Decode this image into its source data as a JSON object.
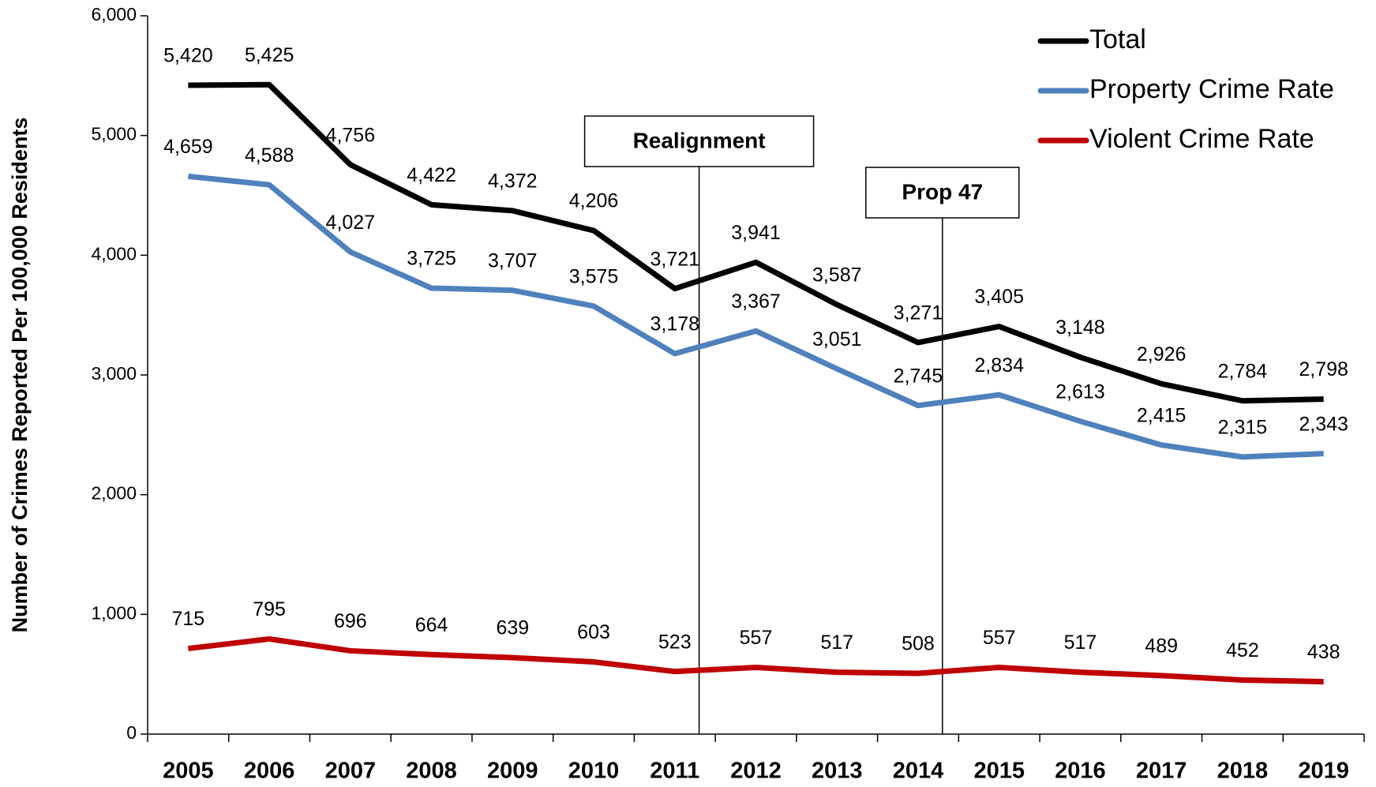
{
  "chart_data": {
    "type": "line",
    "y_label": "Number of Crimes Reported Per 100,000 Residents",
    "categories": [
      "2005",
      "2006",
      "2007",
      "2008",
      "2009",
      "2010",
      "2011",
      "2012",
      "2013",
      "2014",
      "2015",
      "2016",
      "2017",
      "2018",
      "2019"
    ],
    "series": [
      {
        "name": "Total",
        "color": "#000000",
        "values": [
          5420,
          5425,
          4756,
          4422,
          4372,
          4206,
          3721,
          3941,
          3587,
          3271,
          3405,
          3148,
          2926,
          2784,
          2798
        ],
        "value_labels": [
          "5,420",
          "5,425",
          "4,756",
          "4,422",
          "4,372",
          "4,206",
          "3,721",
          "3,941",
          "3,587",
          "3,271",
          "3,405",
          "3,148",
          "2,926",
          "2,784",
          "2,798"
        ]
      },
      {
        "name": "Property Crime Rate",
        "color": "#4f81bd",
        "values": [
          4659,
          4588,
          4027,
          3725,
          3707,
          3575,
          3178,
          3367,
          3051,
          2745,
          2834,
          2613,
          2415,
          2315,
          2343
        ],
        "value_labels": [
          "4,659",
          "4,588",
          "4,027",
          "3,725",
          "3,707",
          "3,575",
          "3,178",
          "3,367",
          "3,051",
          "2,745",
          "2,834",
          "2,613",
          "2,415",
          "2,315",
          "2,343"
        ]
      },
      {
        "name": "Violent Crime Rate",
        "color": "#c00000",
        "values": [
          715,
          795,
          696,
          664,
          639,
          603,
          523,
          557,
          517,
          508,
          557,
          517,
          489,
          452,
          438
        ]
      }
    ],
    "ylim": [
      0,
      6000
    ],
    "yticks": [
      0,
      {
        "value": 1000,
        "label": "1,000"
      },
      {
        "value": 2000,
        "label": "2,000"
      },
      {
        "value": 3000,
        "label": "3,000"
      },
      {
        "value": 4000,
        "label": "4,000"
      },
      {
        "value": 5000,
        "label": "5,000"
      },
      {
        "value": 6000,
        "label": "6,000"
      }
    ],
    "legend": "top-right",
    "annotations": [
      {
        "text": "Realignment",
        "category": "2011"
      },
      {
        "text": "Prop 47",
        "category": "2014"
      }
    ]
  }
}
